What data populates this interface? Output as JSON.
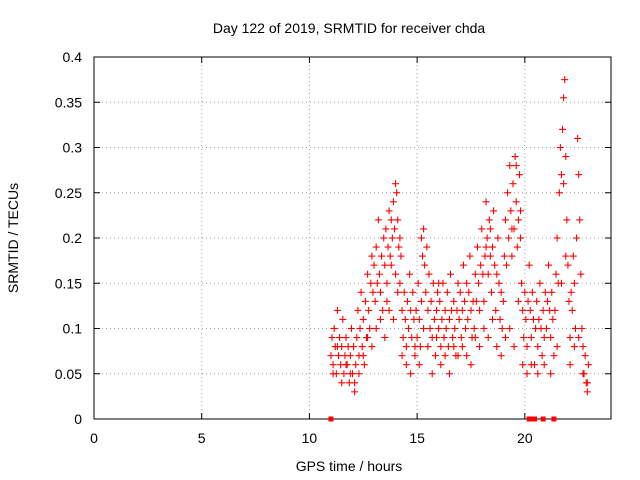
{
  "chart_data": {
    "type": "scatter",
    "title": "Day 122 of 2019, SRMTID for receiver chda",
    "xlabel": "GPS time / hours",
    "ylabel": "SRMTID / TECUs",
    "xlim": [
      0,
      24
    ],
    "ylim": [
      0,
      0.4
    ],
    "x_ticks": [
      0,
      5,
      10,
      15,
      20
    ],
    "x_tick_labels": [
      "0",
      "5",
      "10",
      "15",
      "20"
    ],
    "y_ticks": [
      0,
      0.05,
      0.1,
      0.15,
      0.2,
      0.25,
      0.3,
      0.35,
      0.4
    ],
    "y_tick_labels": [
      "0",
      "0.05",
      "0.1",
      "0.15",
      "0.2",
      "0.25",
      "0.3",
      "0.35",
      "0.4"
    ],
    "grid": true,
    "marker": "+",
    "color": "#ff0000",
    "series": [
      {
        "name": "SRMTID",
        "points": [
          [
            11.0,
            0.07
          ],
          [
            11.05,
            0.09
          ],
          [
            11.1,
            0.06
          ],
          [
            11.15,
            0.1
          ],
          [
            11.2,
            0.08
          ],
          [
            11.25,
            0.05
          ],
          [
            11.3,
            0.12
          ],
          [
            11.35,
            0.07
          ],
          [
            11.4,
            0.09
          ],
          [
            11.45,
            0.06
          ],
          [
            11.5,
            0.08
          ],
          [
            11.55,
            0.11
          ],
          [
            11.6,
            0.05
          ],
          [
            11.65,
            0.07
          ],
          [
            11.7,
            0.09
          ],
          [
            11.75,
            0.06
          ],
          [
            11.8,
            0.08
          ],
          [
            11.85,
            0.04
          ],
          [
            11.9,
            0.07
          ],
          [
            11.95,
            0.1
          ],
          [
            12.0,
            0.05
          ],
          [
            12.05,
            0.08
          ],
          [
            12.1,
            0.03
          ],
          [
            12.15,
            0.06
          ],
          [
            12.2,
            0.09
          ],
          [
            12.25,
            0.12
          ],
          [
            12.3,
            0.07
          ],
          [
            12.35,
            0.1
          ],
          [
            12.4,
            0.14
          ],
          [
            12.45,
            0.08
          ],
          [
            12.5,
            0.11
          ],
          [
            12.55,
            0.06
          ],
          [
            12.6,
            0.13
          ],
          [
            12.65,
            0.09
          ],
          [
            12.7,
            0.16
          ],
          [
            12.75,
            0.12
          ],
          [
            12.8,
            0.1
          ],
          [
            12.85,
            0.15
          ],
          [
            12.9,
            0.18
          ],
          [
            12.95,
            0.14
          ],
          [
            13.0,
            0.17
          ],
          [
            13.05,
            0.13
          ],
          [
            13.1,
            0.19
          ],
          [
            13.15,
            0.15
          ],
          [
            13.2,
            0.22
          ],
          [
            13.25,
            0.16
          ],
          [
            13.3,
            0.14
          ],
          [
            13.35,
            0.18
          ],
          [
            13.4,
            0.12
          ],
          [
            13.45,
            0.2
          ],
          [
            13.5,
            0.17
          ],
          [
            13.55,
            0.21
          ],
          [
            13.6,
            0.15
          ],
          [
            13.65,
            0.19
          ],
          [
            13.7,
            0.23
          ],
          [
            13.75,
            0.18
          ],
          [
            13.8,
            0.22
          ],
          [
            13.85,
            0.2
          ],
          [
            13.9,
            0.24
          ],
          [
            13.95,
            0.21
          ],
          [
            14.0,
            0.26
          ],
          [
            14.05,
            0.25
          ],
          [
            14.1,
            0.22
          ],
          [
            14.15,
            0.19
          ],
          [
            14.2,
            0.15
          ],
          [
            14.25,
            0.18
          ],
          [
            14.3,
            0.12
          ],
          [
            14.35,
            0.09
          ],
          [
            14.4,
            0.14
          ],
          [
            14.45,
            0.11
          ],
          [
            14.5,
            0.08
          ],
          [
            14.55,
            0.13
          ],
          [
            14.6,
            0.1
          ],
          [
            14.65,
            0.16
          ],
          [
            14.7,
            0.12
          ],
          [
            14.75,
            0.09
          ],
          [
            14.8,
            0.14
          ],
          [
            14.85,
            0.11
          ],
          [
            14.9,
            0.07
          ],
          [
            14.95,
            0.12
          ],
          [
            15.0,
            0.09
          ],
          [
            15.05,
            0.15
          ],
          [
            15.1,
            0.11
          ],
          [
            15.15,
            0.08
          ],
          [
            15.2,
            0.13
          ],
          [
            15.25,
            0.18
          ],
          [
            15.3,
            0.21
          ],
          [
            15.35,
            0.17
          ],
          [
            15.4,
            0.14
          ],
          [
            15.45,
            0.19
          ],
          [
            15.5,
            0.12
          ],
          [
            15.55,
            0.16
          ],
          [
            15.6,
            0.1
          ],
          [
            15.65,
            0.13
          ],
          [
            15.7,
            0.09
          ],
          [
            15.75,
            0.15
          ],
          [
            15.8,
            0.11
          ],
          [
            15.85,
            0.07
          ],
          [
            15.9,
            0.12
          ],
          [
            15.95,
            0.14
          ],
          [
            16.0,
            0.1
          ],
          [
            16.05,
            0.13
          ],
          [
            16.1,
            0.08
          ],
          [
            16.15,
            0.11
          ],
          [
            16.2,
            0.15
          ],
          [
            16.25,
            0.09
          ],
          [
            16.3,
            0.12
          ],
          [
            16.35,
            0.1
          ],
          [
            16.4,
            0.14
          ],
          [
            16.45,
            0.08
          ],
          [
            16.5,
            0.11
          ],
          [
            16.55,
            0.16
          ],
          [
            16.6,
            0.12
          ],
          [
            16.65,
            0.09
          ],
          [
            16.7,
            0.13
          ],
          [
            16.75,
            0.1
          ],
          [
            16.8,
            0.07
          ],
          [
            16.85,
            0.12
          ],
          [
            16.9,
            0.15
          ],
          [
            16.95,
            0.11
          ],
          [
            17.0,
            0.14
          ],
          [
            17.05,
            0.09
          ],
          [
            17.1,
            0.12
          ],
          [
            17.15,
            0.17
          ],
          [
            17.2,
            0.13
          ],
          [
            17.25,
            0.1
          ],
          [
            17.3,
            0.15
          ],
          [
            17.35,
            0.11
          ],
          [
            17.4,
            0.14
          ],
          [
            17.45,
            0.18
          ],
          [
            17.5,
            0.12
          ],
          [
            17.55,
            0.09
          ],
          [
            17.6,
            0.13
          ],
          [
            17.65,
            0.1
          ],
          [
            17.7,
            0.16
          ],
          [
            17.75,
            0.13
          ],
          [
            17.8,
            0.19
          ],
          [
            17.85,
            0.15
          ],
          [
            17.9,
            0.12
          ],
          [
            17.95,
            0.17
          ],
          [
            18.0,
            0.21
          ],
          [
            18.05,
            0.16
          ],
          [
            18.1,
            0.13
          ],
          [
            18.15,
            0.18
          ],
          [
            18.2,
            0.24
          ],
          [
            18.25,
            0.2
          ],
          [
            18.3,
            0.16
          ],
          [
            18.35,
            0.22
          ],
          [
            18.4,
            0.18
          ],
          [
            18.45,
            0.14
          ],
          [
            18.5,
            0.19
          ],
          [
            18.55,
            0.23
          ],
          [
            18.6,
            0.17
          ],
          [
            18.65,
            0.12
          ],
          [
            18.7,
            0.16
          ],
          [
            18.75,
            0.2
          ],
          [
            18.8,
            0.15
          ],
          [
            18.85,
            0.11
          ],
          [
            18.9,
            0.14
          ],
          [
            18.95,
            0.1
          ],
          [
            19.0,
            0.13
          ],
          [
            19.05,
            0.18
          ],
          [
            19.1,
            0.22
          ],
          [
            19.15,
            0.17
          ],
          [
            19.2,
            0.25
          ],
          [
            19.25,
            0.2
          ],
          [
            19.3,
            0.28
          ],
          [
            19.35,
            0.23
          ],
          [
            19.4,
            0.18
          ],
          [
            19.45,
            0.26
          ],
          [
            19.5,
            0.21
          ],
          [
            19.55,
            0.29
          ],
          [
            19.6,
            0.24
          ],
          [
            19.65,
            0.19
          ],
          [
            19.7,
            0.22
          ],
          [
            19.75,
            0.27
          ],
          [
            19.8,
            0.2
          ],
          [
            19.85,
            0.15
          ],
          [
            19.9,
            0.12
          ],
          [
            19.95,
            0.09
          ],
          [
            20.0,
            0.14
          ],
          [
            20.05,
            0.11
          ],
          [
            20.1,
            0.08
          ],
          [
            20.15,
            0.13
          ],
          [
            20.2,
            0.17
          ],
          [
            20.25,
            0.12
          ],
          [
            20.3,
            0.09
          ],
          [
            20.35,
            0.14
          ],
          [
            20.4,
            0.11
          ],
          [
            20.45,
            0.06
          ],
          [
            20.5,
            0.1
          ],
          [
            20.55,
            0.13
          ],
          [
            20.6,
            0.08
          ],
          [
            20.65,
            0.11
          ],
          [
            20.7,
            0.15
          ],
          [
            20.75,
            0.1
          ],
          [
            20.8,
            0.07
          ],
          [
            20.85,
            0.12
          ],
          [
            20.9,
            0.09
          ],
          [
            20.95,
            0.14
          ],
          [
            21.0,
            0.1
          ],
          [
            21.05,
            0.13
          ],
          [
            21.1,
            0.17
          ],
          [
            21.15,
            0.12
          ],
          [
            21.2,
            0.09
          ],
          [
            21.25,
            0.14
          ],
          [
            21.3,
            0.11
          ],
          [
            21.35,
            0.07
          ],
          [
            21.4,
            0.12
          ],
          [
            21.45,
            0.16
          ],
          [
            21.5,
            0.2
          ],
          [
            21.55,
            0.15
          ],
          [
            21.6,
            0.25
          ],
          [
            21.65,
            0.3
          ],
          [
            21.7,
            0.27
          ],
          [
            21.75,
            0.32
          ],
          [
            21.8,
            0.355
          ],
          [
            21.85,
            0.375
          ],
          [
            21.9,
            0.29
          ],
          [
            21.95,
            0.22
          ],
          [
            22.0,
            0.17
          ],
          [
            22.05,
            0.13
          ],
          [
            22.1,
            0.09
          ],
          [
            22.15,
            0.14
          ],
          [
            22.2,
            0.12
          ],
          [
            22.25,
            0.18
          ],
          [
            22.3,
            0.15
          ],
          [
            22.35,
            0.1
          ],
          [
            22.4,
            0.2
          ],
          [
            22.45,
            0.31
          ],
          [
            22.5,
            0.27
          ],
          [
            22.55,
            0.22
          ],
          [
            22.6,
            0.16
          ],
          [
            22.65,
            0.1
          ],
          [
            22.7,
            0.08
          ],
          [
            22.75,
            0.05
          ],
          [
            22.8,
            0.07
          ],
          [
            22.85,
            0.04
          ],
          [
            22.9,
            0.03
          ],
          [
            22.95,
            0.06
          ],
          [
            11.1,
            0.05
          ],
          [
            11.3,
            0.08
          ],
          [
            11.5,
            0.04
          ],
          [
            11.7,
            0.06
          ],
          [
            11.9,
            0.05
          ],
          [
            12.1,
            0.04
          ],
          [
            12.3,
            0.05
          ],
          [
            12.5,
            0.07
          ],
          [
            12.7,
            0.09
          ],
          [
            12.9,
            0.08
          ],
          [
            13.1,
            0.1
          ],
          [
            13.3,
            0.11
          ],
          [
            13.5,
            0.09
          ],
          [
            13.7,
            0.12
          ],
          [
            13.9,
            0.11
          ],
          [
            14.1,
            0.14
          ],
          [
            14.3,
            0.07
          ],
          [
            14.5,
            0.06
          ],
          [
            14.7,
            0.05
          ],
          [
            14.9,
            0.08
          ],
          [
            15.1,
            0.06
          ],
          [
            15.3,
            0.1
          ],
          [
            15.5,
            0.08
          ],
          [
            15.7,
            0.05
          ],
          [
            15.9,
            0.09
          ],
          [
            16.1,
            0.06
          ],
          [
            16.3,
            0.07
          ],
          [
            16.5,
            0.05
          ],
          [
            16.7,
            0.08
          ],
          [
            16.9,
            0.07
          ],
          [
            17.1,
            0.08
          ],
          [
            17.3,
            0.07
          ],
          [
            17.5,
            0.06
          ],
          [
            17.7,
            0.09
          ],
          [
            17.9,
            0.08
          ],
          [
            18.1,
            0.1
          ],
          [
            18.3,
            0.09
          ],
          [
            18.5,
            0.11
          ],
          [
            18.7,
            0.08
          ],
          [
            18.9,
            0.07
          ],
          [
            19.1,
            0.09
          ],
          [
            19.3,
            0.1
          ],
          [
            19.5,
            0.08
          ],
          [
            19.7,
            0.13
          ],
          [
            19.9,
            0.06
          ],
          [
            20.1,
            0.05
          ],
          [
            20.3,
            0.06
          ],
          [
            20.6,
            0.05
          ],
          [
            20.9,
            0.06
          ],
          [
            21.2,
            0.05
          ],
          [
            21.5,
            0.08
          ],
          [
            21.7,
            0.15
          ],
          [
            21.9,
            0.18
          ],
          [
            22.1,
            0.06
          ],
          [
            22.3,
            0.08
          ],
          [
            22.5,
            0.09
          ],
          [
            22.7,
            0.05
          ],
          [
            22.9,
            0.04
          ],
          [
            14.0,
            0.16
          ],
          [
            14.2,
            0.2
          ],
          [
            13.8,
            0.17
          ],
          [
            13.6,
            0.13
          ],
          [
            19.8,
            0.23
          ],
          [
            19.6,
            0.28
          ],
          [
            19.4,
            0.21
          ],
          [
            18.4,
            0.21
          ],
          [
            18.2,
            0.19
          ],
          [
            16.0,
            0.15
          ],
          [
            15.2,
            0.2
          ],
          [
            21.8,
            0.26
          ]
        ],
        "zero_points": [
          [
            11.0,
            0
          ],
          [
            20.2,
            0
          ],
          [
            20.35,
            0
          ],
          [
            20.45,
            0
          ],
          [
            20.85,
            0
          ],
          [
            21.35,
            0
          ]
        ]
      }
    ]
  }
}
